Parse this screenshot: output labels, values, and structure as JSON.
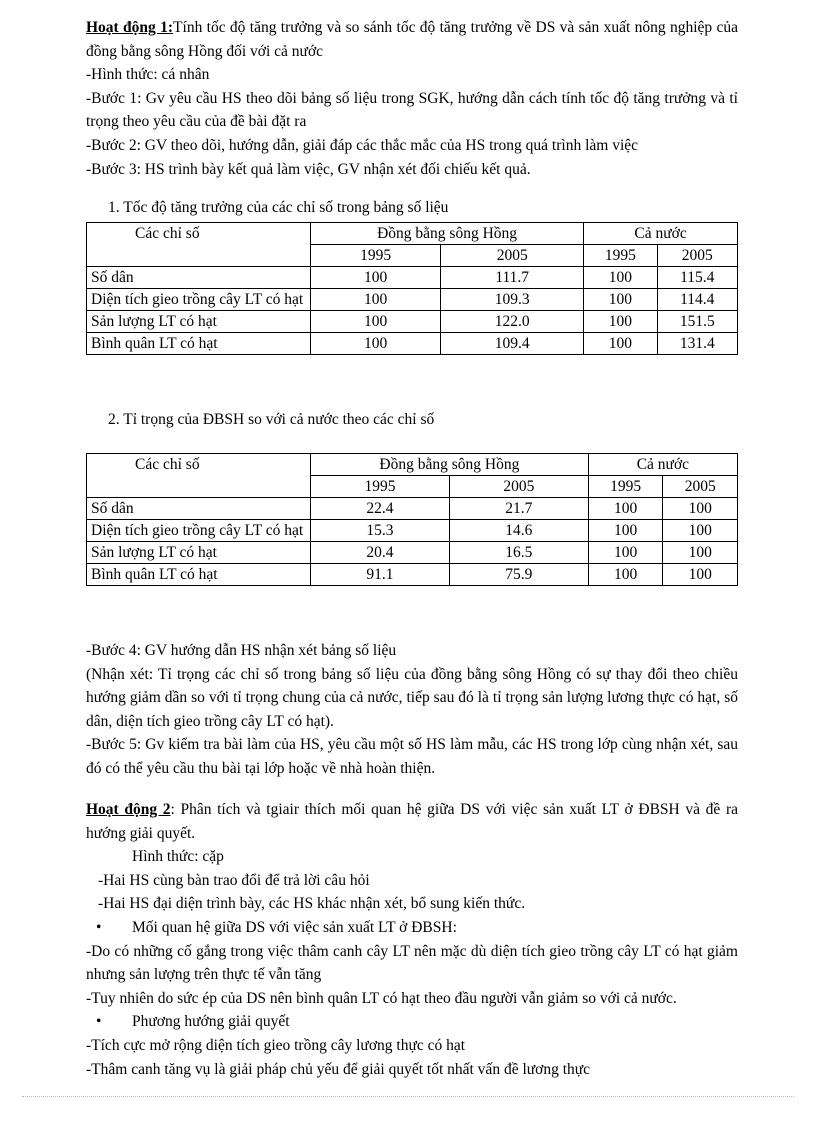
{
  "activity1": {
    "title": "Hoạt động 1:",
    "text": "Tính tốc độ tăng trưởng và so sánh tốc độ tăng trưởng về DS và sản xuất nông nghiệp của đồng bằng sông Hồng đối với cả nước",
    "lines": [
      "-Hình thức: cá nhân",
      "-Bước 1: Gv yêu cầu HS theo dõi bảng số liệu trong SGK, hướng dẫn cách tính tốc độ tăng trưởng và tỉ trọng theo yêu cầu của đề bài đặt ra",
      "-Bước 2: GV theo dõi, hướng dẫn, giải đáp các thắc mắc của HS trong quá trình làm việc",
      "-Bước 3: HS trình bày kết quả làm việc, GV nhận xét đối chiếu kết quả."
    ]
  },
  "table1": {
    "caption": "1.  Tốc độ tăng trưởng của các chỉ số trong bảng số liệu",
    "headers": {
      "col0": "Các chỉ số",
      "group1": "Đồng bằng sông Hồng",
      "group2": "Cả nước",
      "years": [
        "1995",
        "2005",
        "1995",
        "2005"
      ]
    },
    "rows": [
      [
        "Số dân",
        "100",
        "111.7",
        "100",
        "115.4"
      ],
      [
        "Diện tích gieo trồng cây LT có hạt",
        "100",
        "109.3",
        "100",
        "114.4"
      ],
      [
        "Sản lượng LT có hạt",
        "100",
        "122.0",
        "100",
        "151.5"
      ],
      [
        "Bình quân LT có hạt",
        "100",
        "109.4",
        "100",
        "131.4"
      ]
    ]
  },
  "table2": {
    "caption": "2.  Tỉ trọng của ĐBSH so với cả nước theo các chỉ số",
    "headers": {
      "col0": "Các chỉ số",
      "group1": "Đồng bằng sông Hồng",
      "group2": "Cả nước",
      "years": [
        "1995",
        "2005",
        "1995",
        "2005"
      ]
    },
    "rows": [
      [
        "Số dân",
        "22.4",
        "21.7",
        "100",
        "100"
      ],
      [
        "Diện tích gieo trồng cây LT có hạt",
        "15.3",
        "14.6",
        "100",
        "100"
      ],
      [
        "Sản lượng LT có hạt",
        "20.4",
        "16.5",
        "100",
        "100"
      ],
      [
        "Bình quân LT có hạt",
        "91.1",
        "75.9",
        "100",
        "100"
      ]
    ]
  },
  "steps": [
    "-Bước 4: GV hướng dẫn HS nhận xét bảng số liệu",
    "(Nhận xét: Tỉ trọng các chỉ số trong bảng số liệu của đồng bằng sông Hồng có sự thay đổi theo chiều hướng giảm dần so với tỉ trọng chung của cả nước, tiếp sau đó là tỉ trọng sản lượng lương thực có hạt, số dân, diện tích gieo trồng cây LT có hạt).",
    "-Bước 5: Gv kiểm tra bài làm của HS, yêu cầu một số HS làm mẫu, các HS trong lớp cùng nhận xét, sau đó có thể yêu cầu thu bài tại lớp hoặc về nhà hoàn thiện."
  ],
  "activity2": {
    "title": "Hoạt động 2",
    "text": ": Phân tích và tgiair thích mối quan hệ giữa DS với việc sản xuất LT ở ĐBSH và đề ra hướng giải quyết.",
    "form": "Hình thức: cặp",
    "pair_lines": [
      "-Hai HS cùng bàn trao đổi để trả lời câu hỏi",
      "-Hai HS đại diện trình bày, các HS khác nhận xét, bổ sung kiến thức."
    ],
    "bullet1": "Mối quan hệ giữa DS với việc sản xuất LT ở ĐBSH:",
    "bullet1_lines": [
      "-Do có những cố gắng trong việc thâm canh cây LT nên mặc dù diện tích gieo trồng cây LT có hạt giảm nhưng sản lượng trên thực tế vẫn tăng",
      "-Tuy nhiên do sức ép của DS nên bình quân LT có hạt theo đầu người vẫn giảm so với cả nước."
    ],
    "bullet2": "Phương hướng giải quyết",
    "bullet2_lines": [
      "-Tích cực mở rộng diện tích gieo trồng cây lương thực có hạt",
      "-Thâm canh tăng vụ là giải pháp chủ yếu để giải quyết tốt nhất vấn đề lương thực"
    ]
  }
}
